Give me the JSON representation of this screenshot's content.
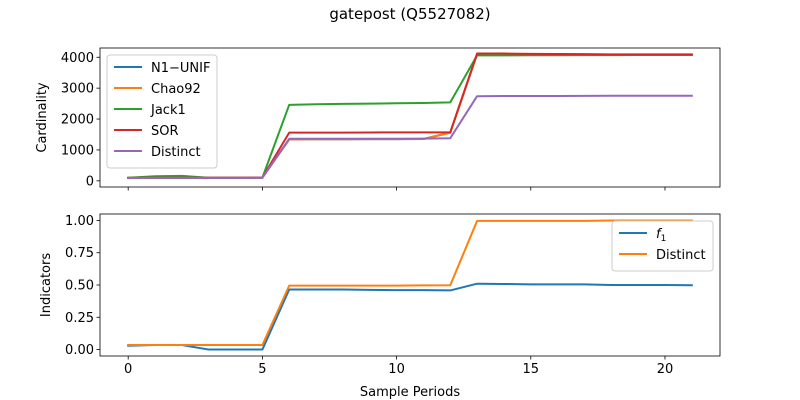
{
  "title": "gatepost (Q5527082)",
  "chart_data": [
    {
      "type": "line",
      "ylabel": "Cardinality",
      "xlabel": "",
      "xlim": [
        -1.05,
        22.05
      ],
      "ylim": [
        -200,
        4300
      ],
      "xticks": [
        0,
        5,
        10,
        15,
        20
      ],
      "xtick_labels_visible": false,
      "yticks": [
        0,
        1000,
        2000,
        3000,
        4000
      ],
      "ytick_labels": [
        "0",
        "1000",
        "2000",
        "3000",
        "4000"
      ],
      "legend_position": "upper-left",
      "grid": false,
      "x": [
        0,
        1,
        2,
        3,
        4,
        5,
        6,
        7,
        8,
        9,
        10,
        11,
        12,
        13,
        14,
        15,
        16,
        17,
        18,
        19,
        20,
        21
      ],
      "series": [
        {
          "name": "N1−UNIF",
          "color": "#1f77b4",
          "values": [
            95,
            100,
            100,
            100,
            100,
            105,
            1340,
            1345,
            1345,
            1350,
            1350,
            1355,
            1560,
            4100,
            4100,
            4090,
            4085,
            4080,
            4080,
            4080,
            4080,
            4080
          ]
        },
        {
          "name": "Chao92",
          "color": "#ff7f0e",
          "values": [
            95,
            100,
            100,
            100,
            100,
            105,
            1340,
            1345,
            1345,
            1350,
            1350,
            1355,
            1560,
            4100,
            4100,
            4090,
            4085,
            4080,
            4080,
            4080,
            4080,
            4080
          ]
        },
        {
          "name": "Jack1",
          "color": "#2ca02c",
          "values": [
            100,
            150,
            160,
            100,
            100,
            100,
            2460,
            2480,
            2490,
            2500,
            2510,
            2520,
            2540,
            4060,
            4060,
            4065,
            4065,
            4070,
            4070,
            4075,
            4075,
            4075
          ]
        },
        {
          "name": "SOR",
          "color": "#d62728",
          "values": [
            95,
            100,
            100,
            100,
            100,
            105,
            1560,
            1560,
            1560,
            1565,
            1570,
            1570,
            1570,
            4120,
            4120,
            4110,
            4105,
            4100,
            4095,
            4095,
            4095,
            4095
          ]
        },
        {
          "name": "Distinct",
          "color": "#9467bd",
          "values": [
            90,
            95,
            95,
            95,
            95,
            100,
            1360,
            1360,
            1360,
            1360,
            1360,
            1365,
            1380,
            2740,
            2745,
            2745,
            2745,
            2750,
            2755,
            2755,
            2755,
            2755
          ]
        }
      ]
    },
    {
      "type": "line",
      "ylabel": "Indicators",
      "xlabel": "Sample Periods",
      "xlim": [
        -1.05,
        22.05
      ],
      "ylim": [
        -0.05,
        1.05
      ],
      "xticks": [
        0,
        5,
        10,
        15,
        20
      ],
      "xtick_labels": [
        "0",
        "5",
        "10",
        "15",
        "20"
      ],
      "yticks": [
        0,
        0.25,
        0.5,
        0.75,
        1.0
      ],
      "ytick_labels": [
        "0.00",
        "0.25",
        "0.50",
        "0.75",
        "1.00"
      ],
      "legend_position": "upper-right",
      "grid": false,
      "x": [
        0,
        1,
        2,
        3,
        4,
        5,
        6,
        7,
        8,
        9,
        10,
        11,
        12,
        13,
        14,
        15,
        16,
        17,
        18,
        19,
        20,
        21
      ],
      "series": [
        {
          "name": "f1",
          "name_base": "f",
          "name_sub": "1",
          "color": "#1f77b4",
          "values": [
            0.03,
            0.035,
            0.035,
            0.0,
            0.0,
            0.0,
            0.465,
            0.465,
            0.465,
            0.462,
            0.46,
            0.46,
            0.458,
            0.51,
            0.508,
            0.505,
            0.505,
            0.505,
            0.5,
            0.5,
            0.5,
            0.498
          ]
        },
        {
          "name": "Distinct",
          "color": "#ff7f0e",
          "values": [
            0.035,
            0.035,
            0.035,
            0.035,
            0.035,
            0.035,
            0.495,
            0.495,
            0.495,
            0.495,
            0.495,
            0.497,
            0.498,
            0.997,
            0.997,
            0.997,
            0.997,
            0.997,
            1.0,
            1.0,
            1.0,
            1.0
          ]
        }
      ]
    }
  ]
}
